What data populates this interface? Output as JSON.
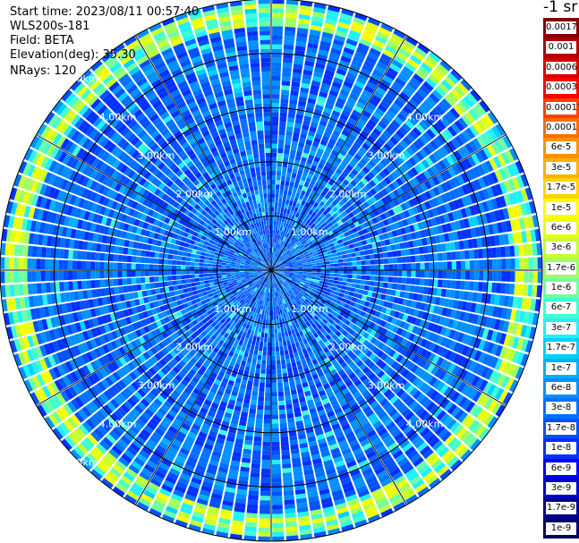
{
  "header": {
    "start_time": "Start time: 2023/08/11 00:57:40",
    "instrument": "WLS200s-181",
    "field": "Field: BETA",
    "elevation": "Elevation(deg): 35.30",
    "nrays": "NRays: 120"
  },
  "colorbar": {
    "unit": "-1 sr",
    "labels": [
      "0.0017",
      "0.001",
      "0.0006",
      "0.0003",
      "0.00017",
      "0.0001",
      "6e-5",
      "3e-5",
      "1.7e-5",
      "1e-5",
      "6e-6",
      "3e-6",
      "1.7e-6",
      "1e-6",
      "6e-7",
      "3e-7",
      "1.7e-7",
      "1e-7",
      "6e-8",
      "3e-8",
      "1.7e-8",
      "1e-8",
      "6e-9",
      "3e-9",
      "1.7e-9",
      "1e-9"
    ],
    "colors": [
      "#800000",
      "#b00000",
      "#d80000",
      "#ff0000",
      "#ff4000",
      "#ff6a00",
      "#ff9000",
      "#ffb000",
      "#ffd400",
      "#ffff00",
      "#e8ff10",
      "#c8ff30",
      "#a0ff60",
      "#70ffa0",
      "#40ffd0",
      "#20f0ff",
      "#00d0ff",
      "#00b0ff",
      "#0090ff",
      "#0070ff",
      "#0050ff",
      "#0030ff",
      "#0000ff",
      "#0000cc",
      "#000090",
      "#000060"
    ]
  },
  "chart_data": {
    "type": "heatmap",
    "projection": "polar (PPI scan)",
    "field": "BETA",
    "elevation_deg": 35.3,
    "n_rays": 120,
    "range_max_km": 5.0,
    "range_rings_km": [
      1.0,
      2.0,
      3.0,
      4.0,
      5.0
    ],
    "ring_labels": [
      "1.00km",
      "2.00km",
      "3.00km",
      "4.00km",
      "5.00km"
    ],
    "grid": true,
    "colorscale": "log",
    "vmin": 1e-09,
    "vmax": 0.0017,
    "dominant_value": 3e-08,
    "enhanced_band_km": [
      4.5,
      4.9
    ],
    "enhanced_band_value": 1e-06
  }
}
